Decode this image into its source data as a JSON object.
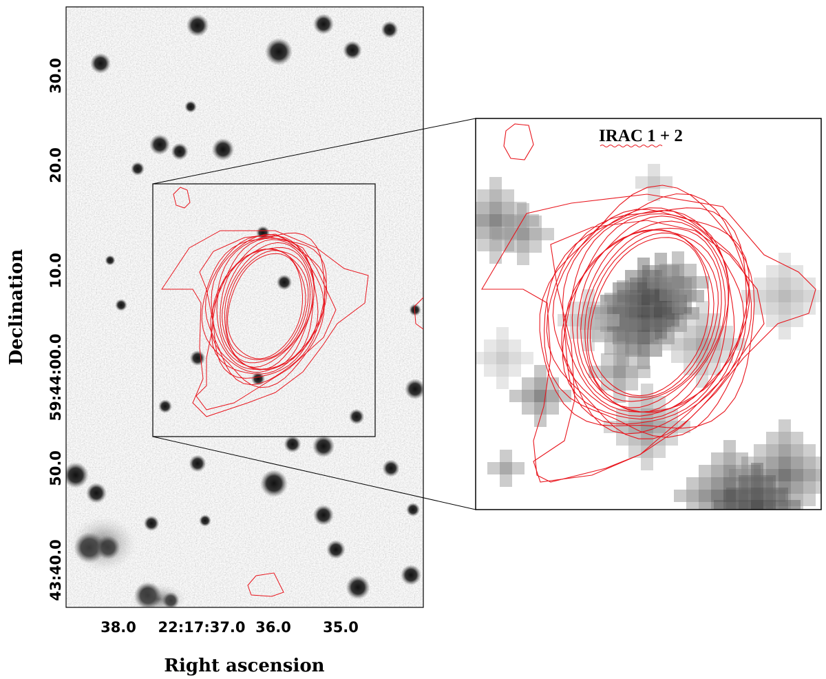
{
  "figure": {
    "xlabel": "Right ascension",
    "ylabel": "Declination",
    "x_ticks": [
      "38.0",
      "22:17:37.0",
      "36.0",
      "35.0"
    ],
    "y_ticks": [
      "30.0",
      "20.0",
      "10.0",
      "59:44:00.0",
      "50.0",
      "43:40.0"
    ],
    "inset_title": "IRAC 1 + 2"
  },
  "colors": {
    "contour": "#e8141c",
    "frame": "#000000",
    "sky": "#ffffff",
    "source": "#1a1a1a"
  }
}
